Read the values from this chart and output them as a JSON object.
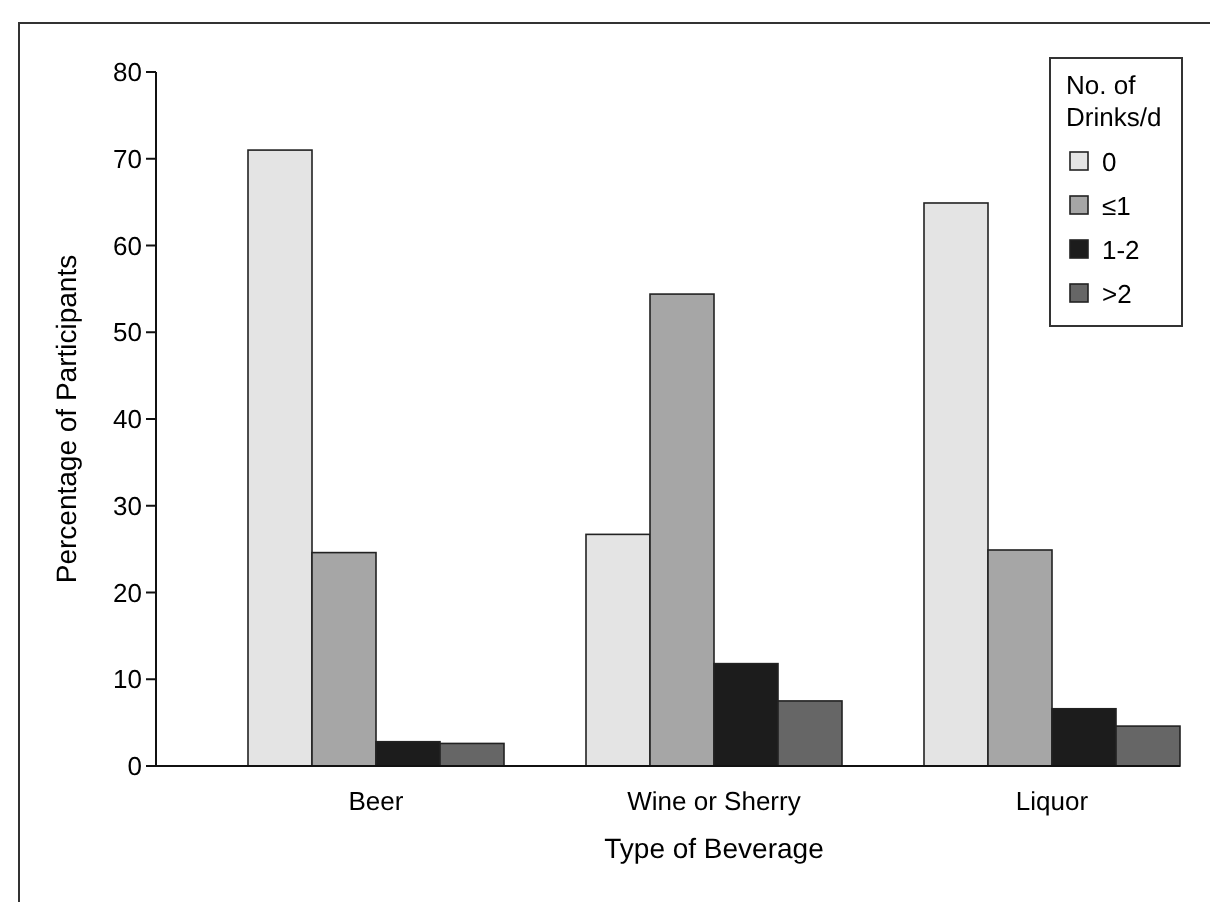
{
  "chart_data": {
    "type": "bar",
    "xlabel": "Type of Beverage",
    "ylabel": "Percentage of Participants",
    "legend_title": "No. of Drinks/d",
    "categories": [
      "Beer",
      "Wine or Sherry",
      "Liquor"
    ],
    "series": [
      {
        "name": "0",
        "color": "#e4e4e4",
        "values": [
          71,
          26.7,
          64.9
        ]
      },
      {
        "name": "≤1",
        "color": "#a6a6a6",
        "values": [
          24.6,
          54.4,
          24.9
        ]
      },
      {
        "name": "1-2",
        "color": "#1c1c1c",
        "values": [
          2.8,
          11.8,
          6.6
        ]
      },
      {
        "name": ">2",
        "color": "#666666",
        "values": [
          2.6,
          7.5,
          4.6
        ]
      }
    ],
    "ylim": [
      0,
      80
    ],
    "yticks": [
      0,
      10,
      20,
      30,
      40,
      50,
      60,
      70,
      80
    ],
    "grid": false,
    "legend": "top right"
  }
}
